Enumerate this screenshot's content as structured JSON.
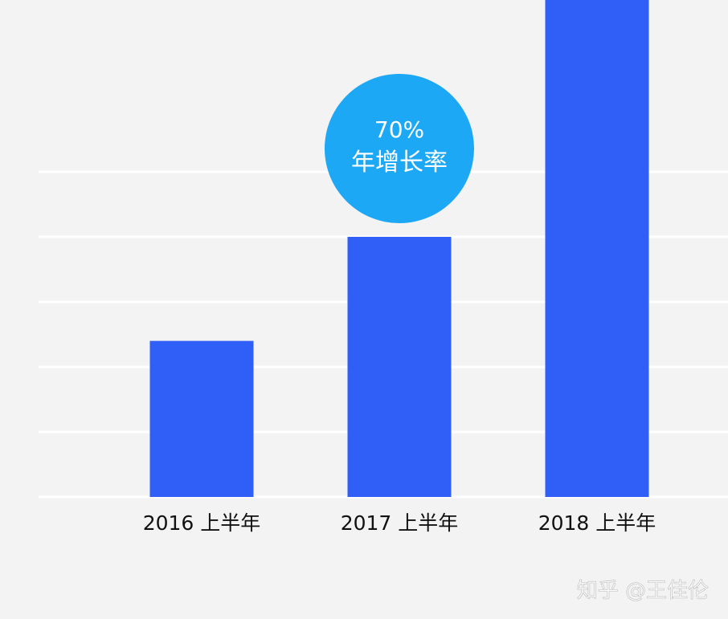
{
  "chart_data": {
    "type": "bar",
    "categories": [
      "2016 上半年",
      "2017 上半年",
      "2018 上半年"
    ],
    "values": [
      24,
      40,
      77
    ],
    "title": "",
    "xlabel": "",
    "ylabel": "",
    "ylim": [
      0,
      90
    ],
    "gridlines": [
      10,
      20,
      30,
      40,
      50
    ],
    "grid": true,
    "legend": "none",
    "annotations": [
      {
        "text_line1": "70%",
        "text_line2": "年增长率"
      }
    ]
  },
  "watermark": "知乎 @王佳伦",
  "colors": {
    "bar": "#2f5ff7",
    "badge": "#1da8f5",
    "background": "#f3f3f4",
    "grid": "#ffffff"
  }
}
